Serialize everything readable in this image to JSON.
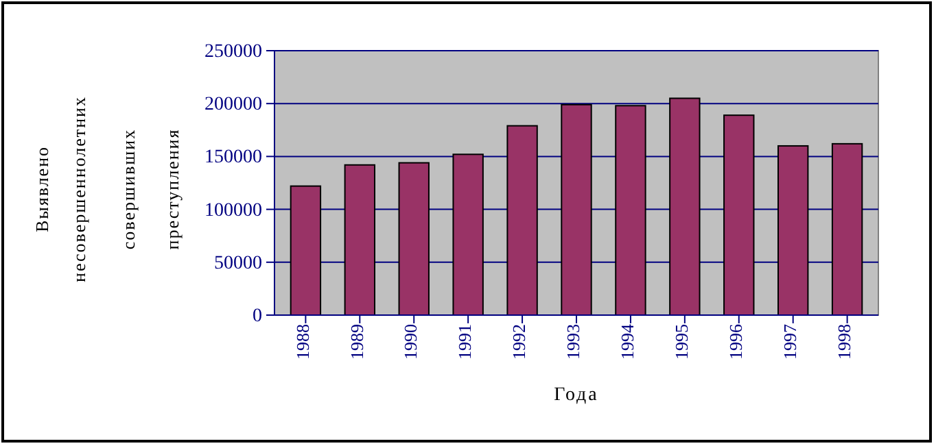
{
  "chart_data": {
    "type": "bar",
    "categories": [
      "1988",
      "1989",
      "1990",
      "1991",
      "1992",
      "1993",
      "1994",
      "1995",
      "1996",
      "1997",
      "1998"
    ],
    "values": [
      122000,
      142000,
      144000,
      152000,
      179000,
      199000,
      198000,
      205000,
      189000,
      160000,
      162000
    ],
    "color": "#993366",
    "ylim": [
      0,
      250000
    ],
    "yticks": [
      0,
      50000,
      100000,
      150000,
      200000,
      250000
    ],
    "grid": "y",
    "xlabel": "Года",
    "ylabel": "Выявлено несовершеннолетних совершивших преступления"
  }
}
